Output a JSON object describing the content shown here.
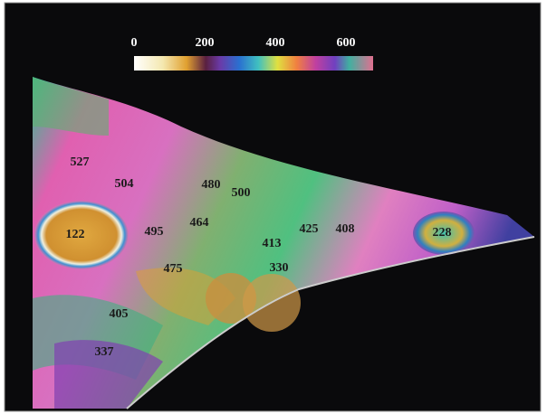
{
  "colorbar": {
    "ticks": [
      0,
      200,
      400,
      600
    ]
  },
  "labels": [
    "527",
    "504",
    "480",
    "500",
    "122",
    "495",
    "464",
    "413",
    "425",
    "408",
    "228",
    "475",
    "330",
    "405",
    "337"
  ]
}
